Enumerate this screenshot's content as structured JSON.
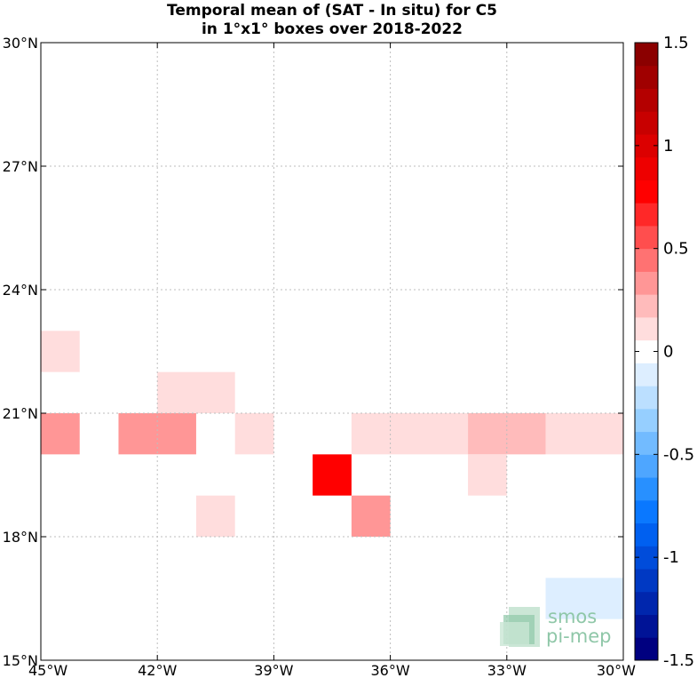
{
  "chart_data": {
    "type": "heatmap",
    "title_lines": [
      "Temporal mean of (SAT - In situ) for C5",
      "in 1°x1° boxes over 2018-2022"
    ],
    "x_ticks": [
      {
        "value": -45,
        "label": "45°W"
      },
      {
        "value": -42,
        "label": "42°W"
      },
      {
        "value": -39,
        "label": "39°W"
      },
      {
        "value": -36,
        "label": "36°W"
      },
      {
        "value": -33,
        "label": "33°W"
      },
      {
        "value": -30,
        "label": "30°W"
      }
    ],
    "y_ticks": [
      {
        "value": 15,
        "label": "15°N"
      },
      {
        "value": 18,
        "label": "18°N"
      },
      {
        "value": 21,
        "label": "21°N"
      },
      {
        "value": 24,
        "label": "24°N"
      },
      {
        "value": 27,
        "label": "27°N"
      },
      {
        "value": 30,
        "label": "30°N"
      }
    ],
    "xlim": [
      -45,
      -30
    ],
    "ylim": [
      15,
      30
    ],
    "grid": true,
    "cells": [
      {
        "lon": [
          -45,
          -44
        ],
        "lat": [
          22,
          23
        ],
        "value": 0.1
      },
      {
        "lon": [
          -42,
          -40
        ],
        "lat": [
          21,
          22
        ],
        "value": 0.1
      },
      {
        "lon": [
          -45,
          -44
        ],
        "lat": [
          20,
          21
        ],
        "value": 0.3
      },
      {
        "lon": [
          -43,
          -41
        ],
        "lat": [
          20,
          21
        ],
        "value": 0.3
      },
      {
        "lon": [
          -40,
          -39
        ],
        "lat": [
          20,
          21
        ],
        "value": 0.1
      },
      {
        "lon": [
          -37,
          -34
        ],
        "lat": [
          20,
          21
        ],
        "value": 0.1
      },
      {
        "lon": [
          -34,
          -32
        ],
        "lat": [
          20,
          21
        ],
        "value": 0.25
      },
      {
        "lon": [
          -32,
          -30
        ],
        "lat": [
          20,
          21
        ],
        "value": 0.1
      },
      {
        "lon": [
          -38,
          -37
        ],
        "lat": [
          19,
          20
        ],
        "value": 0.8
      },
      {
        "lon": [
          -34,
          -33
        ],
        "lat": [
          19,
          20
        ],
        "value": 0.1
      },
      {
        "lon": [
          -41,
          -40
        ],
        "lat": [
          18,
          19
        ],
        "value": 0.1
      },
      {
        "lon": [
          -37,
          -36
        ],
        "lat": [
          18,
          19
        ],
        "value": 0.3
      },
      {
        "lon": [
          -32,
          -30
        ],
        "lat": [
          16,
          17
        ],
        "value": -0.1
      }
    ],
    "colorbar": {
      "range": [
        -1.5,
        1.5
      ],
      "ticks": [
        {
          "value": 1.5,
          "label": "1.5"
        },
        {
          "value": 1,
          "label": "1"
        },
        {
          "value": 0.5,
          "label": "0.5"
        },
        {
          "value": 0,
          "label": "0"
        },
        {
          "value": -0.5,
          "label": "-0.5"
        },
        {
          "value": -1,
          "label": "-1"
        },
        {
          "value": -1.5,
          "label": "-1.5"
        }
      ],
      "colors": [
        "#000080",
        "#001396",
        "#0026ad",
        "#0039c3",
        "#004cda",
        "#0060f0",
        "#0a78ff",
        "#2890ff",
        "#4ea6ff",
        "#72bbff",
        "#96cfff",
        "#bbdfff",
        "#ddeeff",
        "#ffffff",
        "#ffdddd",
        "#ffbbbb",
        "#ff9696",
        "#ff7272",
        "#ff4e4e",
        "#ff2828",
        "#ff0000",
        "#ee0000",
        "#dc0000",
        "#c80000",
        "#b40000",
        "#a00000",
        "#8b0000"
      ]
    }
  },
  "logo": {
    "line1": "smos",
    "line2": "pi-mep"
  }
}
